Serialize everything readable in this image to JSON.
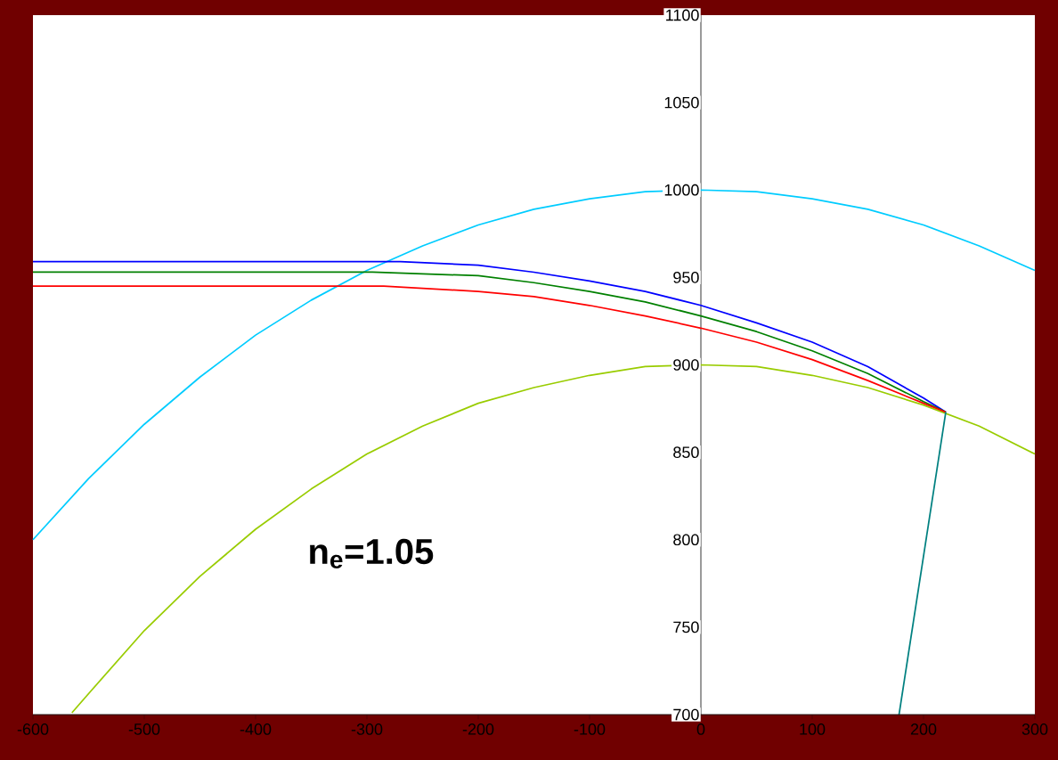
{
  "chart_data": {
    "type": "line",
    "xlim": [
      -600,
      300
    ],
    "ylim": [
      700,
      1100
    ],
    "xticks": [
      -600,
      -500,
      -400,
      -300,
      -200,
      -100,
      0,
      100,
      200,
      300
    ],
    "yticks": [
      700,
      750,
      800,
      850,
      900,
      950,
      1000,
      1050,
      1100
    ],
    "line_style": "solid",
    "annotations": [
      "n$_{e}$=1.05"
    ],
    "series": [
      {
        "color": "#00ccff",
        "x": [
          -600,
          -550,
          -500,
          -450,
          -400,
          -350,
          -300,
          -250,
          -200,
          -150,
          -100,
          -50,
          0,
          50,
          100,
          150,
          200,
          250,
          300
        ],
        "values": [
          800,
          835,
          866,
          893,
          917,
          937,
          954,
          968,
          980,
          989,
          995,
          999,
          1000,
          999,
          995,
          989,
          980,
          968,
          954
        ]
      },
      {
        "color": "#99cc00",
        "x": [
          -565,
          -550,
          -500,
          -450,
          -400,
          -350,
          -300,
          -250,
          -200,
          -150,
          -100,
          -50,
          0,
          50,
          100,
          150,
          200,
          250,
          300
        ],
        "values": [
          701,
          712,
          748,
          779,
          806,
          829,
          849,
          865,
          878,
          887,
          894,
          899,
          900,
          899,
          894,
          887,
          877,
          865,
          849
        ]
      },
      {
        "color": "#0000ff",
        "x": [
          -600,
          -270,
          -200,
          -150,
          -100,
          -50,
          0,
          50,
          100,
          150,
          200,
          220
        ],
        "values": [
          959,
          959,
          957,
          953,
          948,
          942,
          934,
          924,
          913,
          899,
          881,
          873
        ]
      },
      {
        "color": "#008000",
        "x": [
          -600,
          -295,
          -200,
          -150,
          -100,
          -50,
          0,
          50,
          100,
          150,
          200,
          220
        ],
        "values": [
          953,
          953,
          951,
          947,
          942,
          936,
          928,
          919,
          908,
          895,
          879,
          873
        ]
      },
      {
        "color": "#ff0000",
        "x": [
          -600,
          -285,
          -200,
          -150,
          -100,
          -50,
          0,
          50,
          100,
          150,
          200,
          220
        ],
        "values": [
          945,
          945,
          942,
          939,
          934,
          928,
          921,
          913,
          903,
          891,
          878,
          873
        ]
      },
      {
        "color": "#008080",
        "x": [
          220,
          178
        ],
        "values": [
          873,
          700
        ]
      }
    ]
  }
}
